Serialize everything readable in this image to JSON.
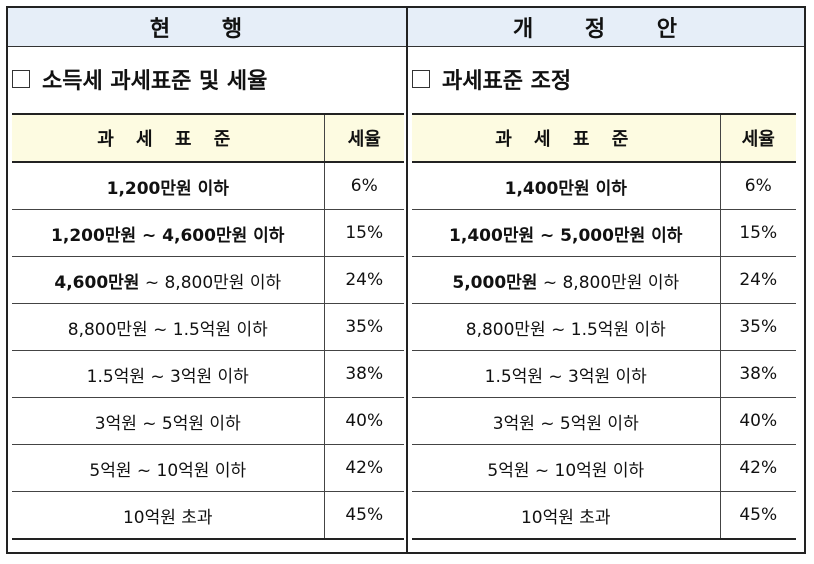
{
  "current": {
    "header": "현 행",
    "section_title": "소득세 과세표준 및 세율",
    "col_range": "과 세 표 준",
    "col_rate": "세율",
    "rows": [
      {
        "range_bold": "1,200만원 이하",
        "range_rest": "",
        "rate": "6%"
      },
      {
        "range_bold": "1,200만원 ~ 4,600만원 이하",
        "range_rest": "",
        "rate": "15%"
      },
      {
        "range_bold": "4,600만원",
        "range_rest": " ~ 8,800만원 이하",
        "rate": "24%"
      },
      {
        "range_bold": "",
        "range_rest": "8,800만원 ~ 1.5억원 이하",
        "rate": "35%"
      },
      {
        "range_bold": "",
        "range_rest": "1.5억원 ~ 3억원 이하",
        "rate": "38%"
      },
      {
        "range_bold": "",
        "range_rest": "3억원 ~ 5억원 이하",
        "rate": "40%"
      },
      {
        "range_bold": "",
        "range_rest": "5억원 ~ 10억원 이하",
        "rate": "42%"
      },
      {
        "range_bold": "",
        "range_rest": "10억원 초과",
        "rate": "45%"
      }
    ]
  },
  "proposed": {
    "header": "개 정 안",
    "section_title": "과세표준 조정",
    "col_range": "과 세 표 준",
    "col_rate": "세율",
    "rows": [
      {
        "range_bold": "1,400만원 이하",
        "range_rest": "",
        "rate": "6%"
      },
      {
        "range_bold": "1,400만원 ~ 5,000만원 이하",
        "range_rest": "",
        "rate": "15%"
      },
      {
        "range_bold": "5,000만원",
        "range_rest": " ~ 8,800만원 이하",
        "rate": "24%"
      },
      {
        "range_bold": "",
        "range_rest": "8,800만원 ~ 1.5억원 이하",
        "rate": "35%"
      },
      {
        "range_bold": "",
        "range_rest": "1.5억원 ~ 3억원 이하",
        "rate": "38%"
      },
      {
        "range_bold": "",
        "range_rest": "3억원 ~ 5억원 이하",
        "rate": "40%"
      },
      {
        "range_bold": "",
        "range_rest": "5억원 ~ 10억원 이하",
        "rate": "42%"
      },
      {
        "range_bold": "",
        "range_rest": "10억원 초과",
        "rate": "45%"
      }
    ]
  }
}
